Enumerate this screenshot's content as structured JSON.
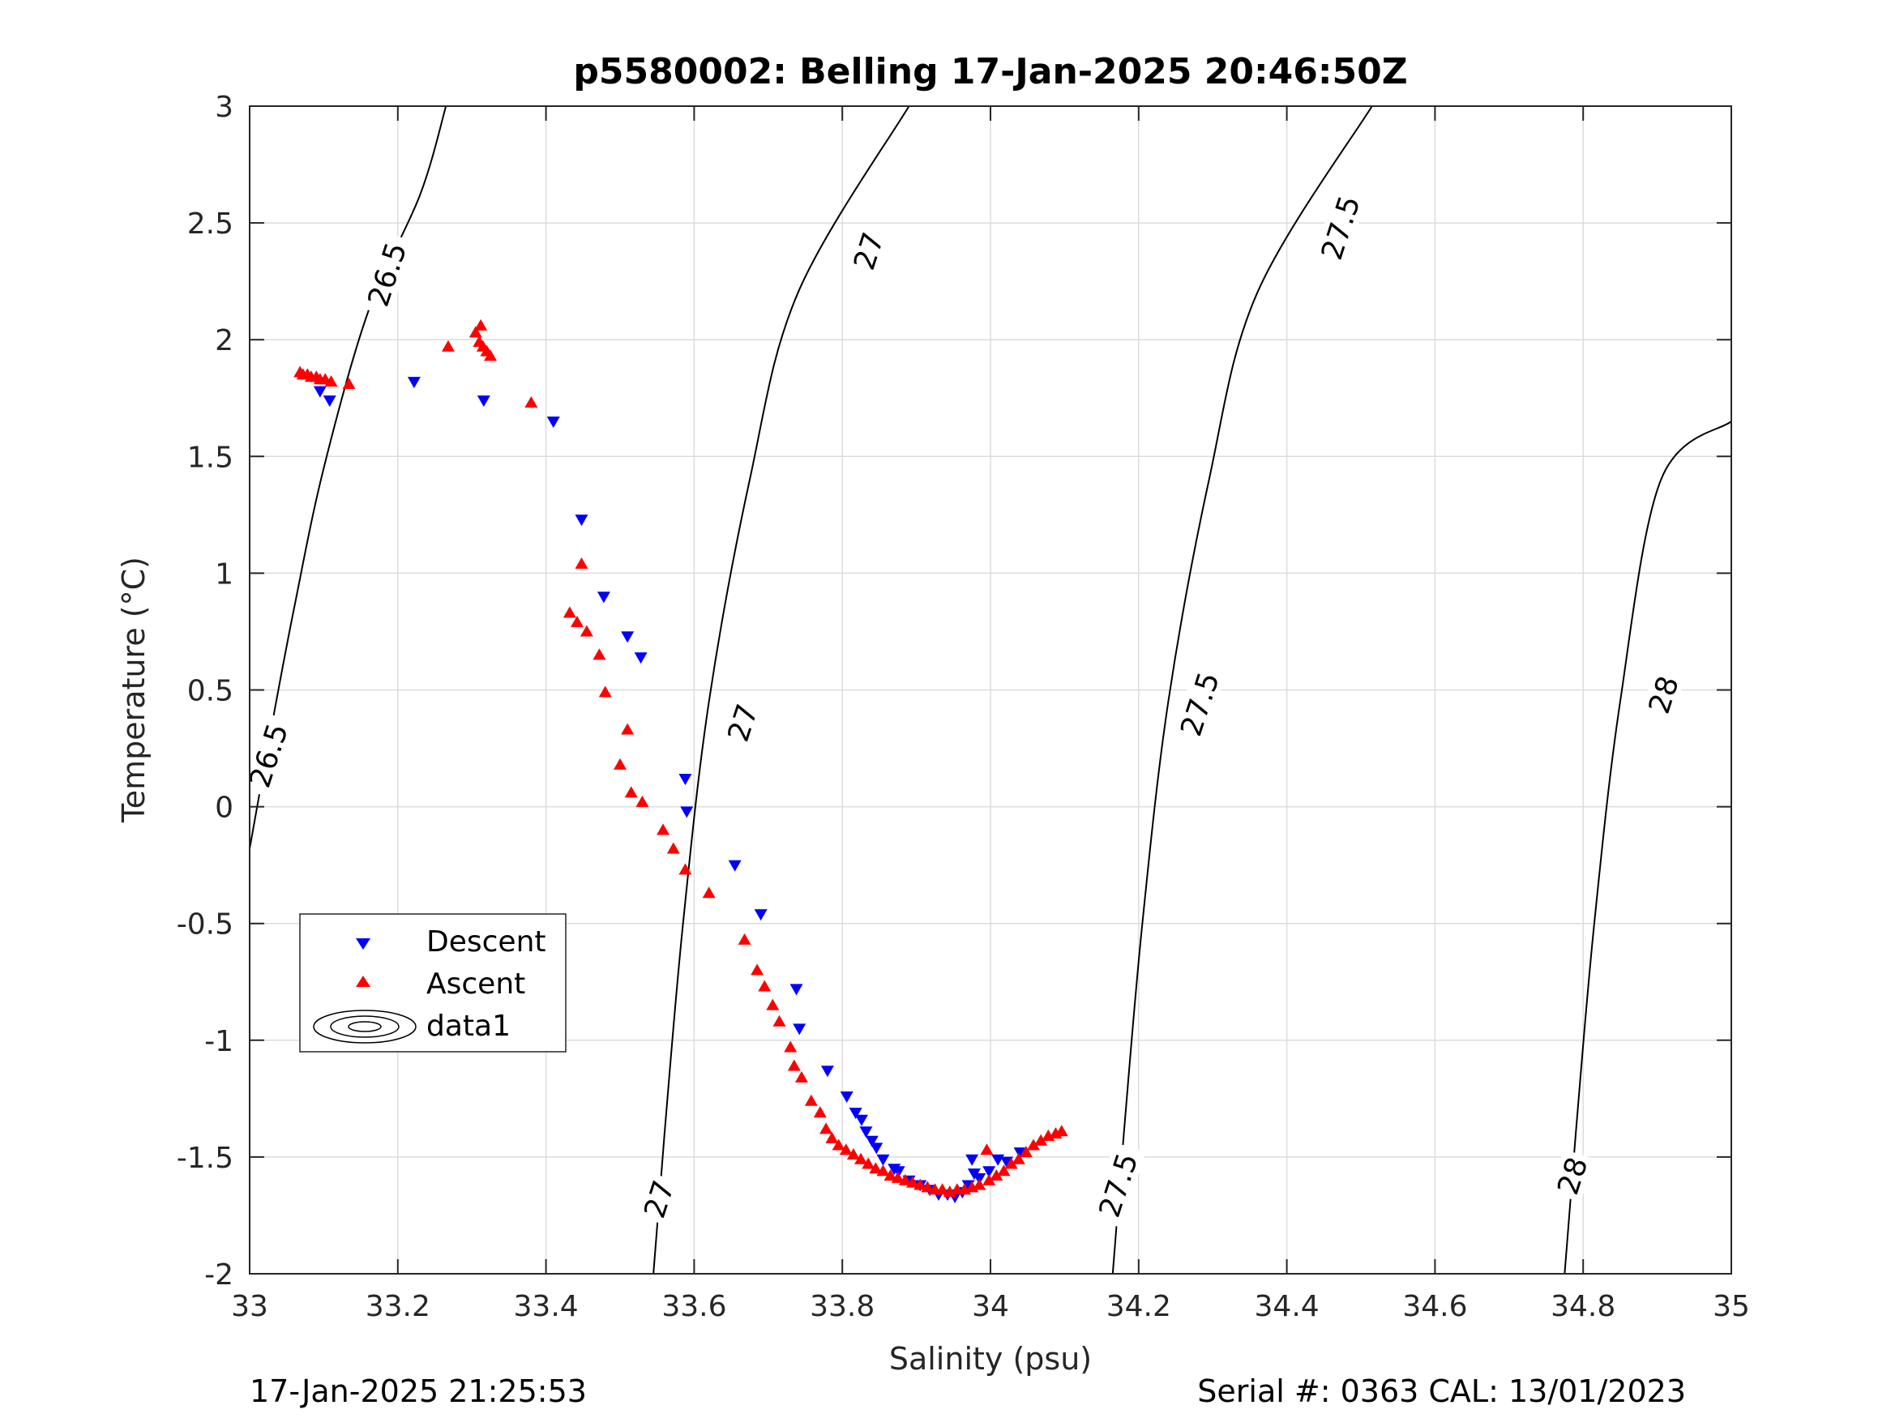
{
  "chart_data": {
    "type": "scatter",
    "title": "p5580002: Belling 17-Jan-2025 20:46:50Z",
    "xlabel": "Salinity (psu)",
    "ylabel": "Temperature (°C)",
    "xlim": [
      33,
      35
    ],
    "ylim": [
      -2,
      3
    ],
    "x_ticks": [
      "33",
      "33.2",
      "33.4",
      "33.6",
      "33.8",
      "34",
      "34.2",
      "34.4",
      "34.6",
      "34.8",
      "35"
    ],
    "y_ticks": [
      "3",
      "2.5",
      "2",
      "1.5",
      "1",
      "0.5",
      "0",
      "-0.5",
      "-1",
      "-1.5",
      "-2"
    ],
    "grid": true,
    "legend_position": "lower-left",
    "colors": {
      "descent": "#0000ff",
      "ascent": "#ff0000",
      "contour": "#000000"
    },
    "series": [
      {
        "name": "Descent",
        "marker": "triangle-down",
        "color": "#0000ff",
        "points": [
          [
            33.095,
            1.78
          ],
          [
            33.108,
            1.74
          ],
          [
            33.222,
            1.82
          ],
          [
            33.316,
            1.74
          ],
          [
            33.41,
            1.65
          ],
          [
            33.448,
            1.23
          ],
          [
            33.478,
            0.9
          ],
          [
            33.51,
            0.73
          ],
          [
            33.528,
            0.64
          ],
          [
            33.588,
            0.12
          ],
          [
            33.59,
            -0.02
          ],
          [
            33.655,
            -0.25
          ],
          [
            33.69,
            -0.46
          ],
          [
            33.738,
            -0.78
          ],
          [
            33.742,
            -0.95
          ],
          [
            33.78,
            -1.13
          ],
          [
            33.806,
            -1.24
          ],
          [
            33.818,
            -1.31
          ],
          [
            33.826,
            -1.34
          ],
          [
            33.832,
            -1.39
          ],
          [
            33.84,
            -1.43
          ],
          [
            33.846,
            -1.46
          ],
          [
            33.855,
            -1.51
          ],
          [
            33.87,
            -1.55
          ],
          [
            33.876,
            -1.56
          ],
          [
            33.89,
            -1.6
          ],
          [
            33.905,
            -1.62
          ],
          [
            33.918,
            -1.64
          ],
          [
            33.93,
            -1.66
          ],
          [
            33.942,
            -1.66
          ],
          [
            33.952,
            -1.67
          ],
          [
            33.962,
            -1.65
          ],
          [
            33.97,
            -1.62
          ],
          [
            33.978,
            -1.57
          ],
          [
            33.975,
            -1.51
          ],
          [
            33.985,
            -1.59
          ],
          [
            33.998,
            -1.56
          ],
          [
            34.01,
            -1.51
          ],
          [
            34.022,
            -1.52
          ],
          [
            34.04,
            -1.48
          ]
        ]
      },
      {
        "name": "Ascent",
        "marker": "triangle-up",
        "color": "#ff0000",
        "points": [
          [
            33.068,
            1.86
          ],
          [
            33.072,
            1.85
          ],
          [
            33.078,
            1.85
          ],
          [
            33.083,
            1.84
          ],
          [
            33.09,
            1.84
          ],
          [
            33.095,
            1.83
          ],
          [
            33.102,
            1.83
          ],
          [
            33.11,
            1.82
          ],
          [
            33.134,
            1.81
          ],
          [
            33.268,
            1.97
          ],
          [
            33.305,
            2.03
          ],
          [
            33.312,
            2.06
          ],
          [
            33.31,
            1.99
          ],
          [
            33.315,
            1.97
          ],
          [
            33.32,
            1.95
          ],
          [
            33.325,
            1.93
          ],
          [
            33.38,
            1.73
          ],
          [
            33.432,
            0.83
          ],
          [
            33.442,
            0.79
          ],
          [
            33.448,
            1.04
          ],
          [
            33.455,
            0.75
          ],
          [
            33.472,
            0.65
          ],
          [
            33.48,
            0.49
          ],
          [
            33.5,
            0.18
          ],
          [
            33.51,
            0.33
          ],
          [
            33.515,
            0.06
          ],
          [
            33.53,
            0.02
          ],
          [
            33.558,
            -0.1
          ],
          [
            33.572,
            -0.18
          ],
          [
            33.588,
            -0.27
          ],
          [
            33.62,
            -0.37
          ],
          [
            33.668,
            -0.57
          ],
          [
            33.685,
            -0.7
          ],
          [
            33.695,
            -0.77
          ],
          [
            33.706,
            -0.85
          ],
          [
            33.715,
            -0.92
          ],
          [
            33.73,
            -1.03
          ],
          [
            33.735,
            -1.11
          ],
          [
            33.745,
            -1.16
          ],
          [
            33.758,
            -1.26
          ],
          [
            33.77,
            -1.31
          ],
          [
            33.778,
            -1.38
          ],
          [
            33.786,
            -1.42
          ],
          [
            33.795,
            -1.45
          ],
          [
            33.805,
            -1.47
          ],
          [
            33.815,
            -1.49
          ],
          [
            33.825,
            -1.51
          ],
          [
            33.835,
            -1.53
          ],
          [
            33.845,
            -1.55
          ],
          [
            33.855,
            -1.56
          ],
          [
            33.865,
            -1.58
          ],
          [
            33.875,
            -1.59
          ],
          [
            33.885,
            -1.6
          ],
          [
            33.895,
            -1.61
          ],
          [
            33.905,
            -1.62
          ],
          [
            33.915,
            -1.63
          ],
          [
            33.925,
            -1.64
          ],
          [
            33.935,
            -1.64
          ],
          [
            33.945,
            -1.65
          ],
          [
            33.955,
            -1.64
          ],
          [
            33.965,
            -1.64
          ],
          [
            33.975,
            -1.63
          ],
          [
            33.985,
            -1.62
          ],
          [
            33.995,
            -1.47
          ],
          [
            33.998,
            -1.6
          ],
          [
            34.008,
            -1.58
          ],
          [
            34.018,
            -1.56
          ],
          [
            34.028,
            -1.53
          ],
          [
            34.038,
            -1.51
          ],
          [
            34.048,
            -1.48
          ],
          [
            34.058,
            -1.45
          ],
          [
            34.068,
            -1.43
          ],
          [
            34.078,
            -1.41
          ],
          [
            34.088,
            -1.4
          ],
          [
            34.096,
            -1.39
          ]
        ]
      },
      {
        "name": "data1",
        "type": "contour",
        "color": "#000000",
        "levels": [
          {
            "label": "26.5",
            "points": [
              [
                33.0,
                -0.18
              ],
              [
                33.03,
                0.35
              ],
              [
                33.06,
                0.85
              ],
              [
                33.1,
                1.45
              ],
              [
                33.16,
                2.12
              ],
              [
                33.23,
                2.62
              ],
              [
                33.265,
                3.0
              ]
            ]
          },
          {
            "label": "27",
            "points": [
              [
                33.545,
                -2.0
              ],
              [
                33.56,
                -1.4
              ],
              [
                33.585,
                -0.5
              ],
              [
                33.62,
                0.45
              ],
              [
                33.675,
                1.4
              ],
              [
                33.74,
                2.2
              ],
              [
                33.89,
                3.0
              ]
            ]
          },
          {
            "label": "27.5",
            "points": [
              [
                34.165,
                -2.0
              ],
              [
                34.18,
                -1.4
              ],
              [
                34.205,
                -0.5
              ],
              [
                34.24,
                0.45
              ],
              [
                34.295,
                1.4
              ],
              [
                34.36,
                2.2
              ],
              [
                34.515,
                3.0
              ]
            ]
          },
          {
            "label": "28",
            "points": [
              [
                34.775,
                -2.0
              ],
              [
                34.79,
                -1.4
              ],
              [
                34.815,
                -0.5
              ],
              [
                34.85,
                0.45
              ],
              [
                34.905,
                1.4
              ],
              [
                35.0,
                1.65
              ]
            ]
          }
        ],
        "inline_labels": [
          {
            "text": "26.5",
            "x": 33.025,
            "y": 0.22
          },
          {
            "text": "26.5",
            "x": 33.185,
            "y": 2.28
          },
          {
            "text": "27",
            "x": 33.552,
            "y": -1.68
          },
          {
            "text": "27",
            "x": 33.665,
            "y": 0.36
          },
          {
            "text": "27",
            "x": 33.835,
            "y": 2.38
          },
          {
            "text": "27.5",
            "x": 34.172,
            "y": -1.62
          },
          {
            "text": "27.5",
            "x": 34.282,
            "y": 0.44
          },
          {
            "text": "27.5",
            "x": 34.472,
            "y": 2.48
          },
          {
            "text": "28",
            "x": 34.785,
            "y": -1.58
          },
          {
            "text": "28",
            "x": 34.908,
            "y": 0.48
          }
        ]
      }
    ]
  },
  "footer": {
    "timestamp": "17-Jan-2025 21:25:53",
    "serial": "Serial #: 0363  CAL: 13/01/2023"
  }
}
